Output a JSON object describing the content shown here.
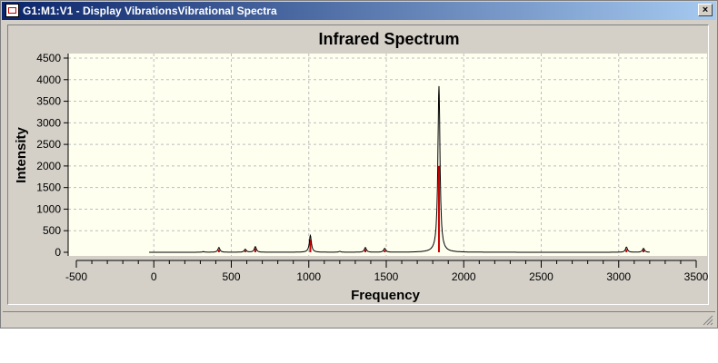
{
  "window": {
    "title": "G1:M1:V1 - Display VibrationsVibrational Spectra",
    "close_label": "×"
  },
  "chart_data": {
    "type": "line",
    "title": "Infrared Spectrum",
    "xlabel": "Frequency",
    "ylabel": "Intensity",
    "xlim": [
      -500,
      3500
    ],
    "ylim": [
      -200,
      4600
    ],
    "xticks": [
      -500,
      0,
      500,
      1000,
      1500,
      2000,
      2500,
      3000,
      3500
    ],
    "yticks": [
      0,
      500,
      1000,
      1500,
      2000,
      2500,
      3000,
      3500,
      4000,
      4500
    ],
    "grid": true,
    "series": [
      {
        "color": "#000000",
        "peaks": [
          {
            "x": 320,
            "y": 15
          },
          {
            "x": 420,
            "y": 110
          },
          {
            "x": 590,
            "y": 70
          },
          {
            "x": 655,
            "y": 130
          },
          {
            "x": 1010,
            "y": 390
          },
          {
            "x": 1200,
            "y": 20
          },
          {
            "x": 1365,
            "y": 110
          },
          {
            "x": 1490,
            "y": 90
          },
          {
            "x": 1840,
            "y": 3850
          },
          {
            "x": 3050,
            "y": 120
          },
          {
            "x": 3160,
            "y": 90
          }
        ]
      }
    ],
    "sticks": {
      "color": "#cc0000",
      "values": [
        {
          "x": 320,
          "y": 15
        },
        {
          "x": 420,
          "y": 60
        },
        {
          "x": 590,
          "y": 40
        },
        {
          "x": 655,
          "y": 90
        },
        {
          "x": 1010,
          "y": 300
        },
        {
          "x": 1365,
          "y": 70
        },
        {
          "x": 1490,
          "y": 50
        },
        {
          "x": 1840,
          "y": 2000
        },
        {
          "x": 3050,
          "y": 70
        },
        {
          "x": 3160,
          "y": 60
        }
      ]
    }
  }
}
